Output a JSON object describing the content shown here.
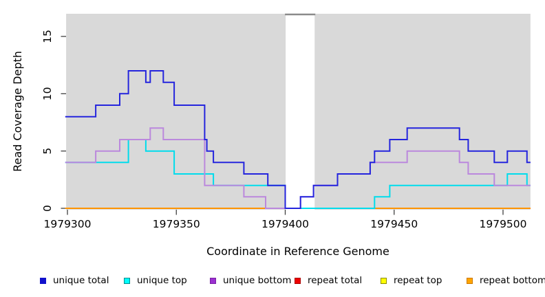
{
  "figure": {
    "panel_background": "#d9d9d9",
    "gap_band": {
      "start": 1979400.2,
      "end": 1979413.5,
      "top_line_color": "#8a8a8a"
    },
    "tick_color": "#404040"
  },
  "chart_data": {
    "type": "line",
    "subtype": "step",
    "title": "",
    "xlabel": "Coordinate in Reference Genome",
    "ylabel": "Read Coverage Depth",
    "xlim": [
      1979299.4,
      1979512.6
    ],
    "ylim": [
      0,
      17
    ],
    "grid": false,
    "legend_position": "bottom",
    "x_ticks": [
      1979300,
      1979350,
      1979400,
      1979450,
      1979500
    ],
    "x_tick_labels": [
      "1979300",
      "1979350",
      "1979400",
      "1979450",
      "1979500"
    ],
    "y_ticks": [
      0,
      5,
      10,
      15
    ],
    "y_tick_labels": [
      "0",
      "5",
      "10",
      "15"
    ],
    "draw_order": [
      "repeat top",
      "repeat total",
      "repeat bottom",
      "unique top",
      "unique bottom",
      "unique total"
    ],
    "series": [
      {
        "name": "unique total",
        "color": "#2424dd",
        "steps": [
          [
            1979299,
            8
          ],
          [
            1979313,
            9
          ],
          [
            1979324,
            10
          ],
          [
            1979328,
            12
          ],
          [
            1979336,
            11
          ],
          [
            1979338,
            12
          ],
          [
            1979344,
            11
          ],
          [
            1979349,
            9
          ],
          [
            1979363,
            6
          ],
          [
            1979364,
            5
          ],
          [
            1979367,
            4
          ],
          [
            1979381,
            3
          ],
          [
            1979392,
            2
          ],
          [
            1979400,
            0
          ],
          [
            1979407,
            1
          ],
          [
            1979413,
            2
          ],
          [
            1979424,
            3
          ],
          [
            1979439,
            4
          ],
          [
            1979441,
            5
          ],
          [
            1979448,
            6
          ],
          [
            1979456,
            7
          ],
          [
            1979480,
            6
          ],
          [
            1979484,
            5
          ],
          [
            1979496,
            4
          ],
          [
            1979502,
            5
          ],
          [
            1979511,
            4
          ]
        ]
      },
      {
        "name": "unique top",
        "color": "#00dcec",
        "steps": [
          [
            1979299,
            4
          ],
          [
            1979328,
            6
          ],
          [
            1979336,
            5
          ],
          [
            1979349,
            3
          ],
          [
            1979367,
            2
          ],
          [
            1979400,
            0
          ],
          [
            1979441,
            1
          ],
          [
            1979448,
            2
          ],
          [
            1979502,
            3
          ],
          [
            1979511,
            2
          ]
        ]
      },
      {
        "name": "unique bottom",
        "color": "#bb88dd",
        "steps": [
          [
            1979299,
            4
          ],
          [
            1979313,
            5
          ],
          [
            1979324,
            6
          ],
          [
            1979338,
            7
          ],
          [
            1979344,
            6
          ],
          [
            1979363,
            2
          ],
          [
            1979381,
            1
          ],
          [
            1979391,
            0
          ],
          [
            1979407,
            1
          ],
          [
            1979413,
            2
          ],
          [
            1979424,
            3
          ],
          [
            1979439,
            4
          ],
          [
            1979456,
            5
          ],
          [
            1979480,
            4
          ],
          [
            1979484,
            3
          ],
          [
            1979496,
            2
          ]
        ]
      },
      {
        "name": "repeat total",
        "color": "#ee2222",
        "steps": [
          [
            1979299,
            0
          ]
        ]
      },
      {
        "name": "repeat top",
        "color": "#ffff00",
        "steps": [
          [
            1979299,
            0
          ]
        ]
      },
      {
        "name": "repeat bottom",
        "color": "#ff9400",
        "steps": [
          [
            1979299,
            0
          ]
        ]
      }
    ]
  },
  "legend": {
    "items": [
      {
        "label": "unique total",
        "fill": "#1111cc",
        "border": "#1111cc"
      },
      {
        "label": "unique top",
        "fill": "#00ffff",
        "border": "#008b8b"
      },
      {
        "label": "unique bottom",
        "fill": "#9b30d0",
        "border": "#7a1fa6"
      },
      {
        "label": "repeat total",
        "fill": "#ee0000",
        "border": "#aa0000"
      },
      {
        "label": "repeat top",
        "fill": "#ffff00",
        "border": "#8b8b00"
      },
      {
        "label": "repeat bottom",
        "fill": "#ffa500",
        "border": "#cc7700"
      }
    ]
  }
}
